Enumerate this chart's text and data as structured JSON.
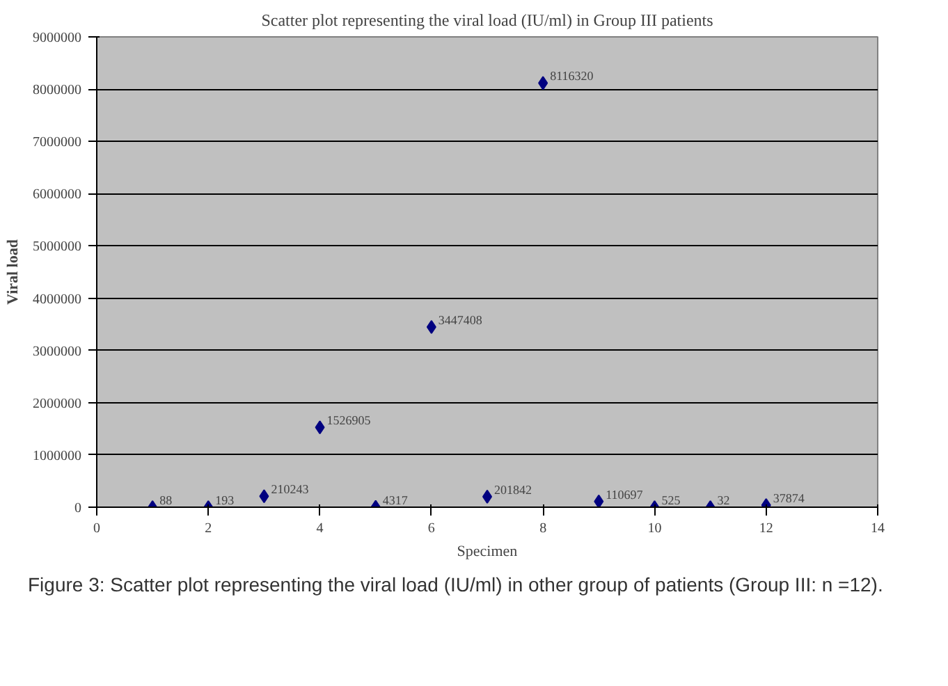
{
  "chart_data": {
    "type": "scatter",
    "title": "Scatter plot representing the viral load (IU/ml) in Group III patients",
    "xlabel": "Specimen",
    "ylabel": "Viral load",
    "x": [
      1,
      2,
      3,
      4,
      5,
      6,
      7,
      8,
      9,
      10,
      11,
      12
    ],
    "values": [
      88,
      193,
      210243,
      1526905,
      4317,
      3447408,
      201842,
      8116320,
      110697,
      525,
      32,
      37874
    ],
    "color": "#000080",
    "marker": "diamond",
    "data_labels": true,
    "xlim": [
      0,
      14
    ],
    "xticks": [
      0,
      2,
      4,
      6,
      8,
      10,
      12,
      14
    ],
    "ylim": [
      0,
      9000000
    ],
    "yticks": [
      0,
      1000000,
      2000000,
      3000000,
      4000000,
      5000000,
      6000000,
      7000000,
      8000000,
      9000000
    ],
    "grid": "y",
    "legend": false,
    "annotations": [
      "Figure 3: Scatter plot representing the viral load (IU/ml) in other group of patients (Group III: n =12)."
    ]
  }
}
